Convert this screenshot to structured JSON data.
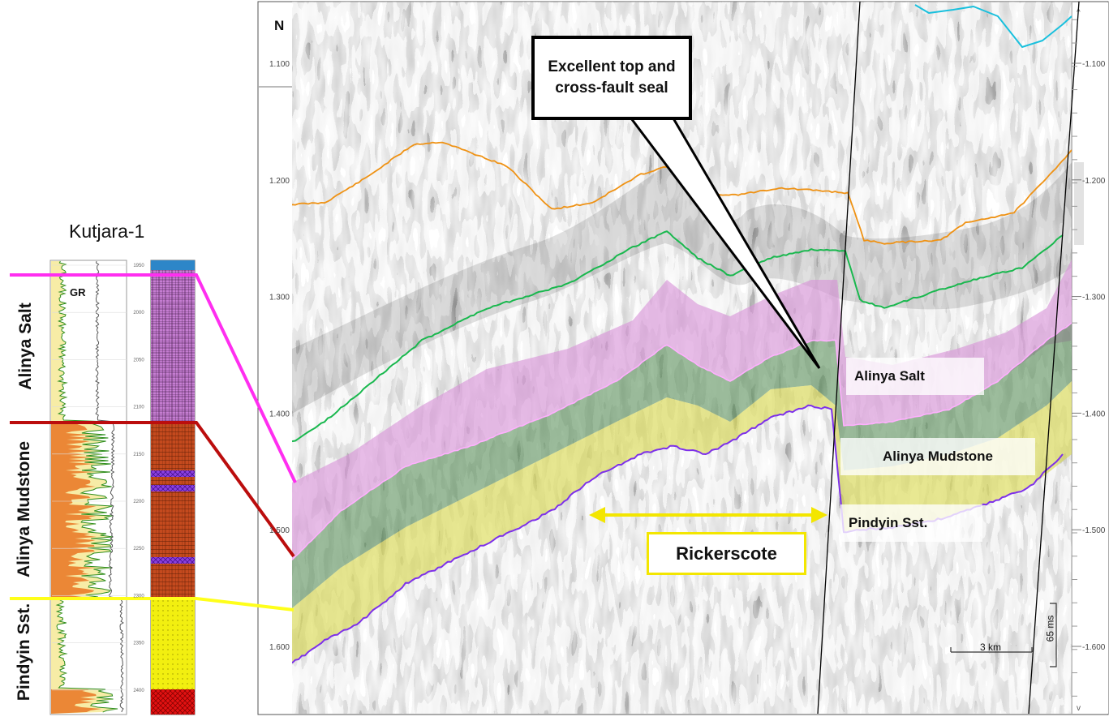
{
  "well": {
    "name": "Kutjara-1",
    "log_label": "GR",
    "depth_ticks": [
      "1950",
      "2000",
      "2050",
      "2100",
      "2150",
      "2200",
      "2250",
      "2300",
      "2350",
      "2400"
    ]
  },
  "formations_left": [
    "Alinya Salt",
    "Alinya Mudstone",
    "Pindyin Sst."
  ],
  "seismic": {
    "north_label": "N",
    "time_ticks_left": [
      "1.100",
      "1.200",
      "1.300",
      "1.400",
      "1.500",
      "1.600"
    ],
    "time_ticks_right": [
      "1.100",
      "1.200",
      "1.300",
      "1.400",
      "1.500",
      "1.600"
    ]
  },
  "callout": {
    "text": "Excellent top and cross-fault seal"
  },
  "formation_labels": {
    "salt": "Alinya Salt",
    "mudstone": "Alinya Mudstone",
    "pindyin": "Pindyin Sst."
  },
  "prospect": {
    "name": "Rickerscote"
  },
  "scale_bar": {
    "horizontal": "3 km",
    "vertical": "65 ms"
  },
  "colors": {
    "magenta": "#ff2ef0",
    "darkred": "#bb0d0d",
    "yellow": "#ffff1a",
    "orange": "#ef9214",
    "green": "#19b84e",
    "purple": "#7d30ea",
    "cyan": "#19c0dd",
    "salt_fill": "#d993d9",
    "mud_fill": "#3e7e3e",
    "sand_fill": "#d9d94a"
  }
}
